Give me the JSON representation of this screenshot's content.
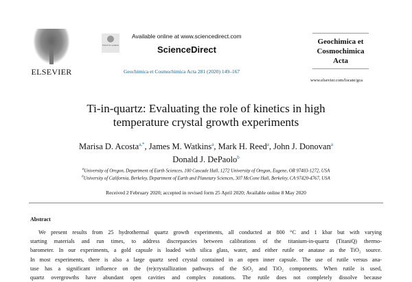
{
  "header": {
    "publisher": "ELSEVIER",
    "check_badge": "Check for updates",
    "available_online": "Available online at www.sciencedirect.com",
    "platform": "ScienceDirect",
    "citation": "Geochimica et Cosmochimica Acta 281 (2020) 149–167",
    "journal_lines": [
      "Geochimica et",
      "Cosmochimica",
      "Acta"
    ],
    "journal_url": "www.elsevier.com/locate/gca"
  },
  "article": {
    "title_lines": [
      "Ti-in-quartz: Evaluating the role of kinetics in high",
      "temperature crystal growth experiments"
    ],
    "authors": [
      {
        "name": "Marisa D. Acosta",
        "sup": "a,*"
      },
      {
        "name": "James M. Watkins",
        "sup": "a"
      },
      {
        "name": "Mark H. Reed",
        "sup": "a"
      },
      {
        "name": "John J. Donovan",
        "sup": "a"
      },
      {
        "name": "Donald J. DePaolo",
        "sup": "b"
      }
    ],
    "affiliations": [
      {
        "sup": "a",
        "text": "University of Oregon, Department of Earth Sciences, 100 Cascade Hall, 1272 University of Oregon, Eugene, OR 97403-1272, USA"
      },
      {
        "sup": "b",
        "text": "University of California, Berkeley, Department of Earth and Planetary Sciences, 307 McCone Hall, Berkeley, CA 97420-4767, USA"
      }
    ],
    "received": "Received 2 February 2020; accepted in revised form 25 April 2020; Available online 8 May 2020",
    "abstract_heading": "Abstract",
    "abstract_lines": [
      "We present results from 25 hydrothermal quartz growth experiments, all conducted at 800 °C and 1 kbar but with varying",
      "starting materials and run times, to address discrepancies between calibrations of the titanium-in-quartz (TitaniQ) thermo-",
      "barometer. In our experiments, a gold capsule is loaded with silica glass, water, and either rutile or anatase as the TiO₂ source.",
      "In most experiments, there is also a large quartz seed crystal contained in an open inner capsule. The use of rutile versus ana-",
      "tase has a significant influence on the (re)crystallization pathways of the SiO₂ and TiO₂ components. When rutile is used,",
      "quartz overgrowths have abundant open cavities and complex zonations. The rutile does not completely dissolve because"
    ]
  }
}
